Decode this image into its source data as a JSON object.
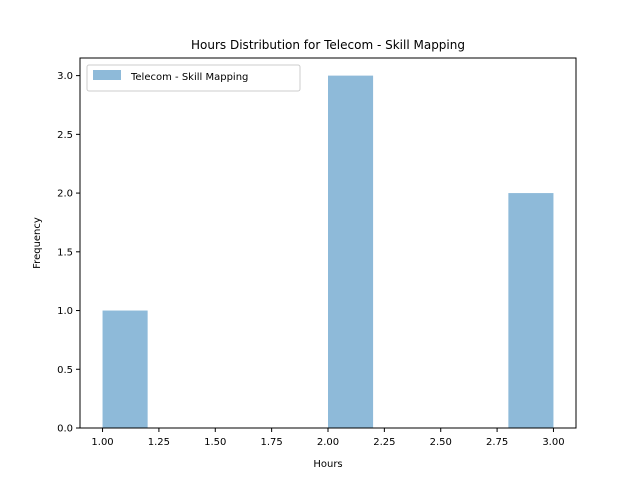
{
  "chart_data": {
    "type": "bar",
    "title": "Hours Distribution for Telecom - Skill Mapping",
    "xlabel": "Hours",
    "ylabel": "Frequency",
    "xlim": [
      0.9,
      3.1
    ],
    "ylim": [
      0,
      3.15
    ],
    "xticks": [
      "1.00",
      "1.25",
      "1.50",
      "1.75",
      "2.00",
      "2.25",
      "2.50",
      "2.75",
      "3.00"
    ],
    "xtick_values": [
      1.0,
      1.25,
      1.5,
      1.75,
      2.0,
      2.25,
      2.5,
      2.75,
      3.0
    ],
    "yticks": [
      "0.0",
      "0.5",
      "1.0",
      "1.5",
      "2.0",
      "2.5",
      "3.0"
    ],
    "ytick_values": [
      0.0,
      0.5,
      1.0,
      1.5,
      2.0,
      2.5,
      3.0
    ],
    "grid": false,
    "legend_position": "top-left",
    "series": [
      {
        "name": "Telecom - Skill Mapping",
        "color": "#8ebad9",
        "bins": [
          {
            "start": 1.0,
            "end": 1.2,
            "value": 1
          },
          {
            "start": 2.0,
            "end": 2.2,
            "value": 3
          },
          {
            "start": 2.8,
            "end": 3.0,
            "value": 2
          }
        ]
      }
    ]
  }
}
